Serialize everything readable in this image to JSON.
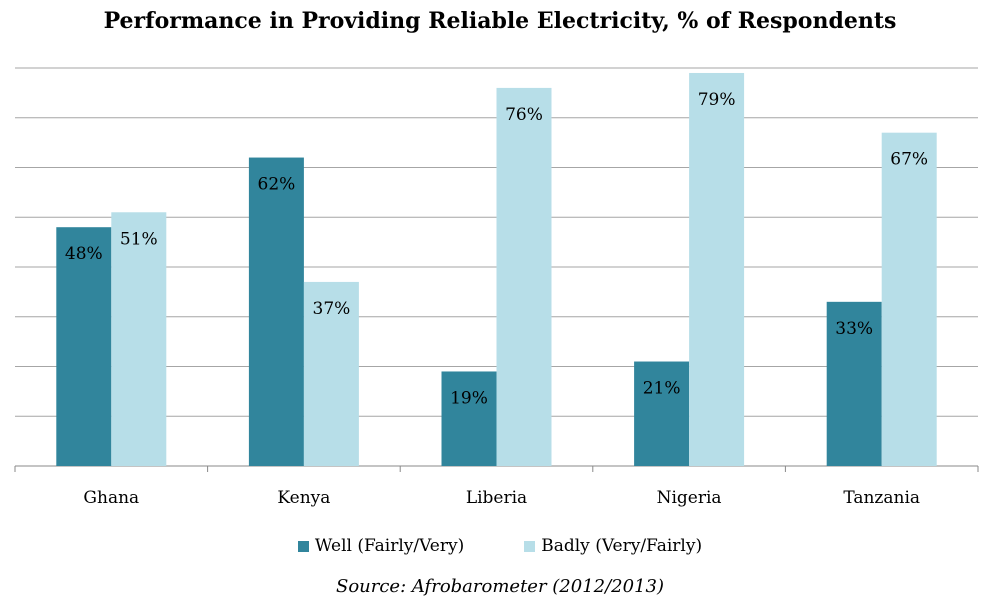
{
  "chart_data": {
    "type": "bar",
    "title": "Performance in Providing Reliable Electricity, % of Respondents",
    "categories": [
      "Ghana",
      "Kenya",
      "Liberia",
      "Nigeria",
      "Tanzania"
    ],
    "series": [
      {
        "name": "Well (Fairly/Very)",
        "values": [
          48,
          62,
          19,
          21,
          33
        ],
        "color": "#31859c"
      },
      {
        "name": "Badly (Very/Fairly)",
        "values": [
          51,
          37,
          76,
          79,
          67
        ],
        "color": "#b7dee8"
      }
    ],
    "value_suffix": "%",
    "ylim": [
      0,
      80
    ],
    "grid_step": 10,
    "grid": true,
    "legend": "bottom",
    "source": "Source: Afrobarometer (2012/2013)"
  }
}
